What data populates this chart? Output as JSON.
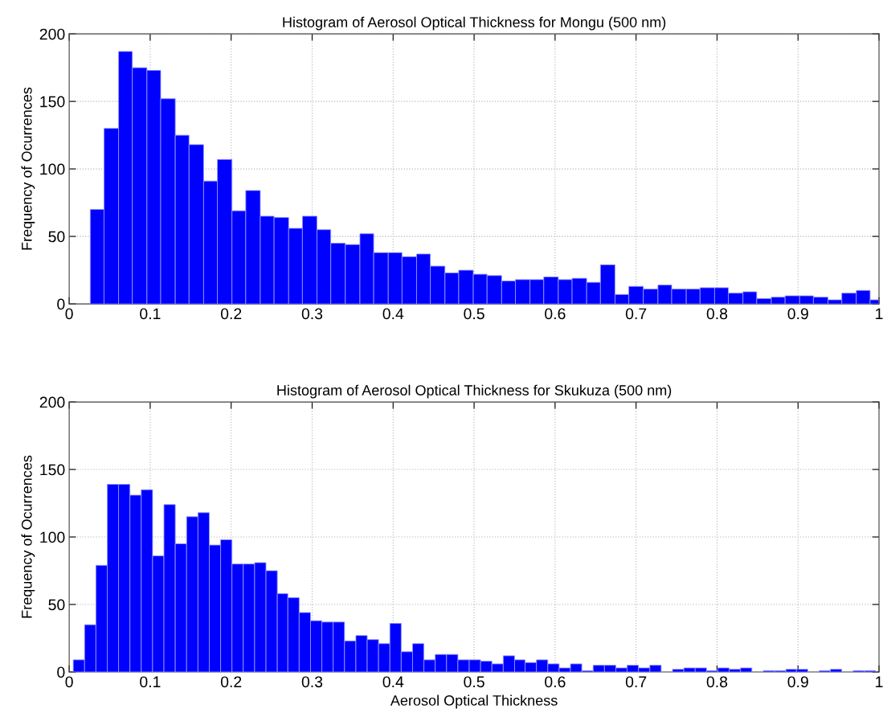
{
  "chart_data": [
    {
      "type": "histogram",
      "title": "Histogram of Aerosol Optical Thickness for Mongu (500 nm)",
      "ylabel": "Frequency of Ocurrences",
      "color": "#0000ff",
      "grid": true,
      "bins": [
        0.026,
        0.043,
        0.061,
        0.078,
        0.096,
        0.113,
        0.131,
        0.148,
        0.166,
        0.183,
        0.201,
        0.218,
        0.236,
        0.253,
        0.271,
        0.288,
        0.306,
        0.323,
        0.341,
        0.359,
        0.376,
        0.394,
        0.411,
        0.429,
        0.446,
        0.464,
        0.481,
        0.499,
        0.516,
        0.534,
        0.551,
        0.569,
        0.586,
        0.604,
        0.621,
        0.639,
        0.656,
        0.674,
        0.691,
        0.709,
        0.727,
        0.744,
        0.762,
        0.779,
        0.797,
        0.814,
        0.832,
        0.849,
        0.867,
        0.884,
        0.902,
        0.919,
        0.937,
        0.954,
        0.972,
        0.989,
        1.0
      ],
      "values": [
        70,
        130,
        187,
        175,
        173,
        152,
        125,
        118,
        91,
        107,
        69,
        84,
        65,
        64,
        56,
        65,
        55,
        45,
        44,
        52,
        38,
        38,
        35,
        37,
        28,
        23,
        25,
        22,
        21,
        17,
        18,
        18,
        20,
        18,
        19,
        16,
        29,
        7,
        13,
        11,
        14,
        11,
        11,
        12,
        12,
        8,
        9,
        4,
        5,
        6,
        6,
        5,
        3,
        8,
        10,
        3
      ],
      "xlim": [
        0,
        1
      ],
      "xticks": [
        0,
        0.1,
        0.2,
        0.3,
        0.4,
        0.5,
        0.6,
        0.7,
        0.8,
        0.9,
        1
      ],
      "ylim": [
        0,
        200
      ],
      "yticks": [
        0,
        50,
        100,
        150,
        200
      ]
    },
    {
      "type": "histogram",
      "title": "Histogram of Aerosol Optical Thickness for Skukuza (500 nm)",
      "xlabel": "Aerosol Optical Thickness",
      "ylabel": "Frequency of Ocurrences",
      "color": "#0000ff",
      "grid": true,
      "bins": [
        0.005,
        0.019,
        0.033,
        0.047,
        0.061,
        0.075,
        0.089,
        0.103,
        0.117,
        0.131,
        0.145,
        0.159,
        0.173,
        0.187,
        0.201,
        0.215,
        0.229,
        0.243,
        0.257,
        0.27,
        0.284,
        0.298,
        0.312,
        0.326,
        0.34,
        0.354,
        0.368,
        0.382,
        0.396,
        0.41,
        0.424,
        0.438,
        0.452,
        0.466,
        0.48,
        0.494,
        0.508,
        0.522,
        0.536,
        0.55,
        0.563,
        0.577,
        0.591,
        0.605,
        0.619,
        0.633,
        0.647,
        0.661,
        0.675,
        0.689,
        0.703,
        0.717,
        0.731,
        0.745,
        0.759,
        0.773,
        0.787,
        0.801,
        0.815,
        0.829,
        0.843,
        0.857,
        0.871,
        0.885,
        0.898,
        0.912,
        0.926,
        0.94,
        0.954,
        0.968,
        0.982,
        0.996
      ],
      "values": [
        9,
        35,
        79,
        139,
        139,
        131,
        135,
        86,
        124,
        95,
        115,
        118,
        94,
        98,
        80,
        80,
        81,
        75,
        58,
        55,
        44,
        38,
        37,
        37,
        23,
        27,
        24,
        21,
        36,
        15,
        21,
        9,
        13,
        13,
        9,
        9,
        8,
        6,
        12,
        9,
        7,
        9,
        6,
        3,
        6,
        1,
        5,
        5,
        3,
        5,
        3,
        5,
        0,
        2,
        3,
        3,
        1,
        3,
        2,
        3,
        0,
        1,
        1,
        2,
        2,
        0,
        1,
        2,
        0,
        1,
        1
      ],
      "xlim": [
        0,
        1
      ],
      "xticks": [
        0,
        0.1,
        0.2,
        0.3,
        0.4,
        0.5,
        0.6,
        0.7,
        0.8,
        0.9,
        1
      ],
      "ylim": [
        0,
        200
      ],
      "yticks": [
        0,
        50,
        100,
        150,
        200
      ]
    }
  ]
}
